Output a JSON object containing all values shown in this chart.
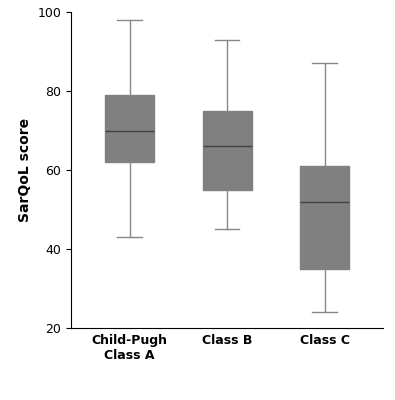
{
  "categories": [
    "Child-Pugh\nClass A",
    "Class B",
    "Class C"
  ],
  "boxes": [
    {
      "whislo": 43,
      "q1": 62,
      "med": 70,
      "q3": 79,
      "whishi": 98
    },
    {
      "whislo": 45,
      "q1": 55,
      "med": 66,
      "q3": 75,
      "whishi": 93
    },
    {
      "whislo": 24,
      "q1": 35,
      "med": 52,
      "q3": 61,
      "whishi": 87
    }
  ],
  "ylabel": "SarQoL score",
  "ylim": [
    20,
    100
  ],
  "yticks": [
    20,
    40,
    60,
    80,
    100
  ],
  "box_color": "#808080",
  "median_color": "#404040",
  "whisker_color": "#888888",
  "cap_color": "#888888",
  "background_color": "#ffffff",
  "box_width": 0.5,
  "linewidth": 1.0,
  "tick_fontsize": 9,
  "label_fontsize": 10
}
